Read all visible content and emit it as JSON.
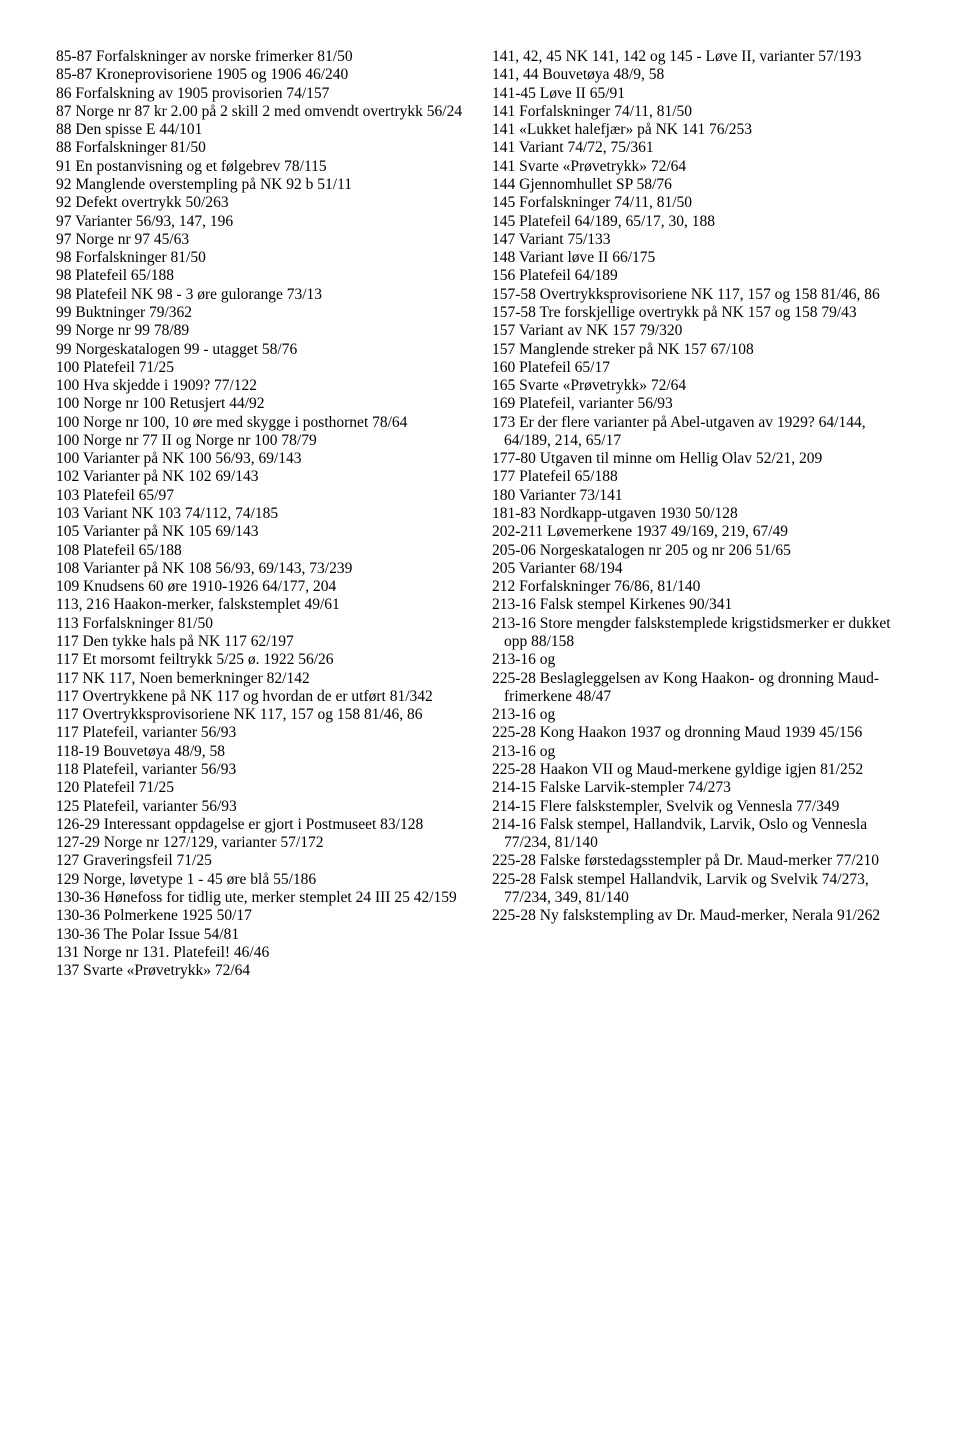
{
  "left": [
    "85-87  Forfalskninger av norske frimerker 81/50",
    "85-87  Kroneprovisoriene 1905 og 1906 46/240",
    "86  Forfalskning av 1905 provisorien 74/157",
    "87  Norge nr 87 kr 2.00 på 2 skill 2 med omvendt overtrykk 56/24",
    "88  Den spisse E 44/101",
    "88  Forfalskninger 81/50",
    "91  En postanvisning og et følgebrev 78/115",
    "92  Manglende overstempling på NK 92 b 51/11",
    "92  Defekt overtrykk 50/263",
    "97  Varianter 56/93, 147, 196",
    "97  Norge nr 97 45/63",
    "98  Forfalskninger 81/50",
    "98  Platefeil 65/188",
    "98  Platefeil NK 98 - 3 øre gulorange 73/13",
    "99  Buktninger 79/362",
    "99  Norge nr 99 78/89",
    "99  Norgeskatalogen 99 - utagget 58/76",
    "100  Platefeil 71/25",
    "100  Hva skjedde i 1909? 77/122",
    "100  Norge nr 100 Retusjert 44/92",
    "100  Norge nr 100, 10 øre med skygge i posthornet 78/64",
    "100  Norge nr 77 II og Norge nr 100 78/79",
    "100  Varianter på NK 100 56/93, 69/143",
    "102  Varianter på NK 102 69/143",
    "103  Platefeil 65/97",
    "103  Variant NK 103 74/112, 74/185",
    "105  Varianter på NK 105 69/143",
    "108  Platefeil 65/188",
    "108  Varianter på NK 108 56/93, 69/143, 73/239",
    "109  Knudsens 60 øre 1910-1926 64/177, 204",
    "113, 216  Haakon-merker, falskstemplet 49/61",
    "113  Forfalskninger 81/50",
    "117  Den tykke hals på NK 117 62/197",
    "117  Et morsomt feiltrykk 5/25 ø. 1922 56/26",
    "117  NK 117, Noen bemerkninger 82/142",
    "117  Overtrykkene på NK 117 og hvordan de er utført 81/342",
    "117  Overtrykksprovisoriene NK 117, 157 og 158 81/46, 86",
    "117  Platefeil, varianter 56/93",
    "118-19  Bouvetøya 48/9, 58",
    "118  Platefeil, varianter 56/93",
    "120  Platefeil 71/25",
    "125  Platefeil, varianter 56/93",
    "126-29  Interessant oppdagelse er gjort i Postmuseet 83/128",
    "127-29  Norge nr 127/129, varianter 57/172",
    "127  Graveringsfeil 71/25",
    "129  Norge, løvetype 1 - 45 øre blå 55/186",
    "130-36  Hønefoss for tidlig ute, merker stemplet 24 III 25 42/159",
    "130-36  Polmerkene 1925 50/17",
    "130-36  The Polar Issue 54/81",
    "131  Norge nr 131. Platefeil! 46/46",
    "137  Svarte «Prøvetrykk» 72/64"
  ],
  "right": [
    "141, 42, 45  NK 141, 142 og 145 - Løve II, varianter 57/193",
    "141, 44  Bouvetøya 48/9, 58",
    "141-45  Løve II 65/91",
    "141  Forfalskninger 74/11, 81/50",
    "141  «Lukket halefjær» på NK 141 76/253",
    "141  Variant 74/72, 75/361",
    "141  Svarte «Prøvetrykk» 72/64",
    "144  Gjennomhullet SP 58/76",
    "145  Forfalskninger 74/11, 81/50",
    "145  Platefeil 64/189, 65/17, 30, 188",
    "147  Variant 75/133",
    "148  Variant løve II 66/175",
    "156  Platefeil 64/189",
    "157-58  Overtrykksprovisoriene NK 117, 157 og 158 81/46, 86",
    "157-58  Tre forskjellige overtrykk på NK 157 og 158 79/43",
    "157  Variant av NK 157 79/320",
    "157  Manglende streker på NK 157 67/108",
    "160  Platefeil 65/17",
    "165  Svarte «Prøvetrykk» 72/64",
    "169  Platefeil, varianter 56/93",
    "173  Er der flere varianter på Abel-utgaven av 1929? 64/144, 64/189, 214, 65/17",
    "177-80  Utgaven til minne om Hellig Olav 52/21, 209",
    "177  Platefeil 65/188",
    "180  Varianter 73/141",
    "181-83  Nordkapp-utgaven 1930 50/128",
    "202-211  Løvemerkene 1937 49/169, 219, 67/49",
    "205-06  Norgeskatalogen nr 205 og nr 206 51/65",
    "205  Varianter 68/194",
    "212  Forfalskninger 76/86, 81/140",
    "213-16  Falsk stempel Kirkenes 90/341",
    "213-16  Store mengder falskstemplede krigstidsmerker er dukket opp 88/158",
    "213-16 og",
    "225-28  Beslagleggelsen av Kong Haakon- og dronning Maud-frimerkene 48/47",
    "213-16 og",
    "225-28  Kong Haakon 1937 og dronning Maud 1939 45/156",
    "213-16 og",
    "225-28  Haakon VII og Maud-merkene gyldige igjen 81/252",
    "214-15  Falske Larvik-stempler 74/273",
    "214-15  Flere falskstempler, Svelvik og Vennesla 77/349",
    "214-16  Falsk stempel, Hallandvik, Larvik, Oslo og Vennesla 77/234, 81/140",
    "225-28  Falske førstedagsstempler på Dr. Maud-merker 77/210",
    "225-28  Falsk stempel Hallandvik, Larvik og Svelvik 74/273, 77/234, 349, 81/140",
    "225-28  Ny falskstempling av Dr. Maud-merker, Nerala 91/262"
  ]
}
